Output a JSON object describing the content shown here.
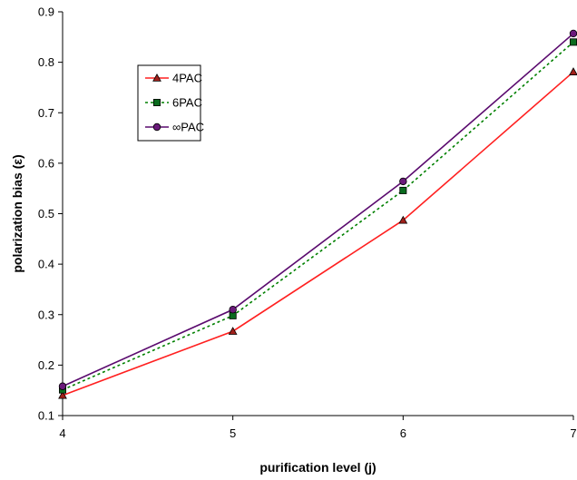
{
  "chart_data": {
    "type": "line",
    "title": "",
    "xlabel": "purification level (j)",
    "ylabel": "polarization bias (ε)",
    "x": [
      4,
      5,
      6,
      7
    ],
    "xlim": [
      4,
      7
    ],
    "ylim": [
      0.1,
      0.9
    ],
    "xticks": [
      "4",
      "5",
      "6",
      "7"
    ],
    "yticks": [
      "0.1",
      "0.2",
      "0.3",
      "0.4",
      "0.5",
      "0.6",
      "0.7",
      "0.8",
      "0.9"
    ],
    "grid": false,
    "legend_position": "top-left",
    "series": [
      {
        "name": "4PAC",
        "values": [
          0.14,
          0.267,
          0.487,
          0.781
        ],
        "color": "#ff2020",
        "dash": "solid",
        "marker": "triangle",
        "marker_fill": "#a0201a"
      },
      {
        "name": "6PAC",
        "values": [
          0.151,
          0.298,
          0.546,
          0.84
        ],
        "color": "#008000",
        "dash": "dotted",
        "marker": "square",
        "marker_fill": "#0a6b1e"
      },
      {
        "name": "∞PAC",
        "values": [
          0.158,
          0.31,
          0.564,
          0.857
        ],
        "color": "#5a0a6e",
        "dash": "solid",
        "marker": "circle",
        "marker_fill": "#6a1a7a"
      }
    ]
  }
}
